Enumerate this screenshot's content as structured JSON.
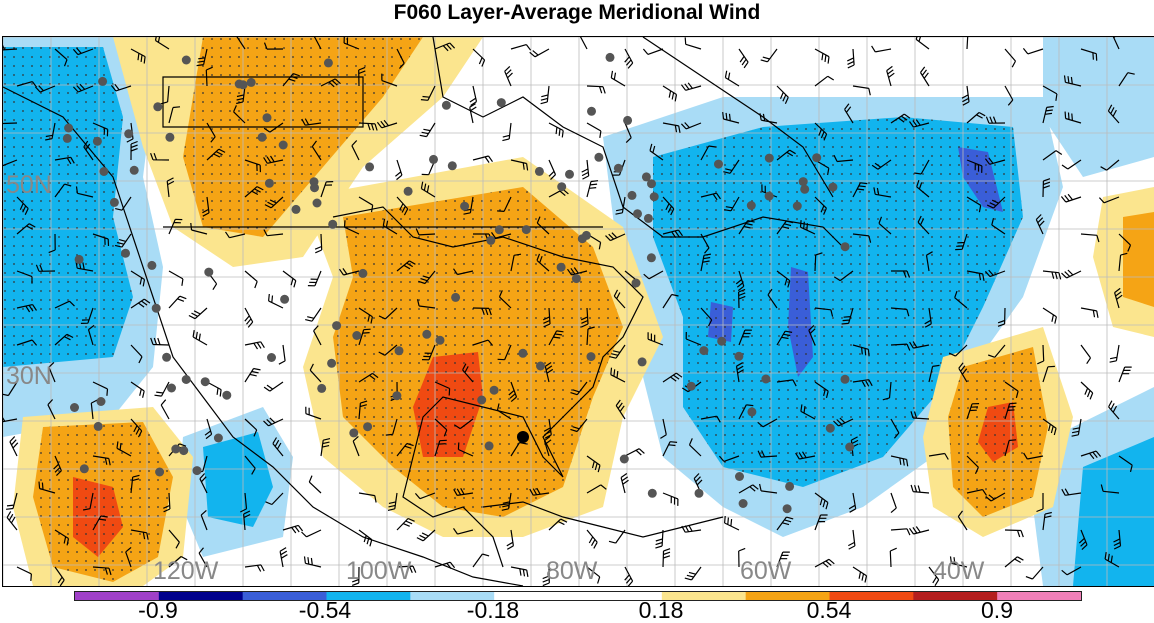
{
  "title": "F060 Layer-Average Meridional Wind",
  "map": {
    "lat_labels": [
      "50N",
      "30N"
    ],
    "lon_labels": [
      "120W",
      "100W",
      "80W",
      "60W",
      "40W"
    ]
  },
  "colorbar": {
    "colors": [
      "#a040c8",
      "#00008c",
      "#3a5ed8",
      "#12b4ee",
      "#a9dcf6",
      "#ffffff",
      "#ffffff",
      "#fbe58e",
      "#f5a415",
      "#f04a12",
      "#b41e1e",
      "#f080b8"
    ],
    "labels": [
      "-0.9",
      "-0.54",
      "-0.18",
      "0.18",
      "0.54",
      "0.9"
    ]
  },
  "stations": 120
}
